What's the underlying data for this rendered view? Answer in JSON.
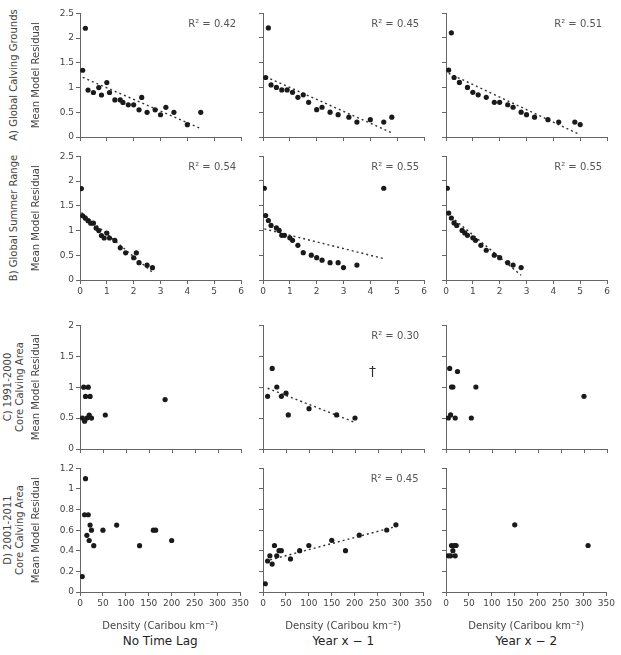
{
  "chart_data": [
    {
      "type": "scatter",
      "title": "A) Global Calving Grounds",
      "ylabel": "Mean Model Residual",
      "series": [
        {
          "type": "scatter",
          "color": "#1a1a1a",
          "marker": "circle",
          "x": [
            0.2,
            0.1,
            0.3,
            0.5,
            0.7,
            0.8,
            1.0,
            1.1,
            1.3,
            1.5,
            1.6,
            1.8,
            2.0,
            2.2,
            2.3,
            2.5,
            2.8,
            3.0,
            3.2,
            3.5,
            4.0,
            4.5
          ],
          "values": [
            2.2,
            1.35,
            0.95,
            0.9,
            1.0,
            0.85,
            1.1,
            0.9,
            0.75,
            0.75,
            0.7,
            0.65,
            0.65,
            0.55,
            0.8,
            0.5,
            0.55,
            0.45,
            0.6,
            0.5,
            0.25,
            0.5
          ]
        },
        {
          "type": "line",
          "color": "#333333",
          "line_style": "dotted",
          "x": [
            0.1,
            4.5
          ],
          "values": [
            1.2073,
            0.1715
          ]
        }
      ],
      "annotations": [
        "R² = 0.42"
      ],
      "xlim": [
        0,
        6
      ],
      "ylim": [
        0,
        2.5
      ],
      "xticks": [
        0,
        1,
        2,
        3,
        4,
        5,
        6
      ],
      "yticks": [
        0,
        0.5,
        1,
        1.5,
        2,
        2.5
      ],
      "grid": false,
      "tick_labels": "y"
    },
    {
      "type": "scatter",
      "series": [
        {
          "type": "scatter",
          "color": "#1a1a1a",
          "marker": "circle",
          "x": [
            0.2,
            0.1,
            0.3,
            0.5,
            0.7,
            0.9,
            1.1,
            1.3,
            1.5,
            1.7,
            2.0,
            2.2,
            2.5,
            2.8,
            3.2,
            3.5,
            4.0,
            4.5,
            4.8
          ],
          "values": [
            2.2,
            1.2,
            1.05,
            1.0,
            0.95,
            0.95,
            0.9,
            0.8,
            0.85,
            0.7,
            0.55,
            0.6,
            0.5,
            0.45,
            0.4,
            0.3,
            0.35,
            0.3,
            0.4
          ]
        },
        {
          "type": "line",
          "color": "#333333",
          "line_style": "dotted",
          "x": [
            0.1,
            4.8
          ],
          "values": [
            1.2145,
            0.0852
          ]
        }
      ],
      "annotations": [
        "R² = 0.45"
      ],
      "xlim": [
        0,
        6
      ],
      "ylim": [
        0,
        2.5
      ],
      "xticks": [
        0,
        1,
        2,
        3,
        4,
        5,
        6
      ],
      "yticks": [
        0,
        0.5,
        1,
        1.5,
        2,
        2.5
      ],
      "grid": false,
      "tick_labels": false
    },
    {
      "type": "scatter",
      "series": [
        {
          "type": "scatter",
          "color": "#1a1a1a",
          "marker": "circle",
          "x": [
            0.2,
            0.1,
            0.3,
            0.5,
            0.8,
            1.0,
            1.2,
            1.5,
            1.8,
            2.0,
            2.3,
            2.5,
            2.8,
            3.0,
            3.3,
            3.8,
            4.2,
            4.8,
            5.0
          ],
          "values": [
            2.1,
            1.35,
            1.2,
            1.1,
            1.0,
            0.9,
            0.85,
            0.8,
            0.7,
            0.7,
            0.65,
            0.6,
            0.5,
            0.45,
            0.4,
            0.35,
            0.3,
            0.3,
            0.25
          ]
        },
        {
          "type": "line",
          "color": "#333333",
          "line_style": "dotted",
          "x": [
            0.1,
            5.0
          ],
          "values": [
            1.2844,
            0.0465
          ]
        }
      ],
      "annotations": [
        "R² = 0.51"
      ],
      "xlim": [
        0,
        6
      ],
      "ylim": [
        0,
        2.5
      ],
      "xticks": [
        0,
        1,
        2,
        3,
        4,
        5,
        6
      ],
      "yticks": [
        0,
        0.5,
        1,
        1.5,
        2,
        2.5
      ],
      "grid": false,
      "tick_labels": false
    },
    {
      "type": "scatter",
      "title": "B) Global Summer Range",
      "ylabel": "Mean Model Residual",
      "series": [
        {
          "type": "scatter",
          "color": "#1a1a1a",
          "marker": "circle",
          "x": [
            0.05,
            0.1,
            0.2,
            0.3,
            0.4,
            0.5,
            0.6,
            0.7,
            0.8,
            0.9,
            1.0,
            1.1,
            1.3,
            1.5,
            1.7,
            2.0,
            2.1,
            2.2,
            2.5,
            2.7
          ],
          "values": [
            1.85,
            1.3,
            1.25,
            1.2,
            1.15,
            1.15,
            1.05,
            1.0,
            0.9,
            0.85,
            0.95,
            0.85,
            0.8,
            0.65,
            0.55,
            0.45,
            0.55,
            0.35,
            0.3,
            0.25
          ]
        },
        {
          "type": "line",
          "color": "#333333",
          "line_style": "dotted",
          "x": [
            0.05,
            2.7
          ],
          "values": [
            1.3633,
            0.1557
          ]
        }
      ],
      "annotations": [
        "R² = 0.54"
      ],
      "xlim": [
        0,
        6
      ],
      "ylim": [
        0,
        2.5
      ],
      "xticks": [
        0,
        1,
        2,
        3,
        4,
        5,
        6
      ],
      "yticks": [
        0,
        0.5,
        1,
        1.5,
        2,
        2.5
      ],
      "grid": false
    },
    {
      "type": "scatter",
      "series": [
        {
          "type": "scatter",
          "color": "#1a1a1a",
          "marker": "circle",
          "x": [
            0.05,
            0.1,
            0.2,
            0.3,
            0.5,
            0.6,
            0.7,
            0.8,
            1.0,
            1.1,
            1.3,
            1.5,
            1.8,
            2.0,
            2.2,
            2.5,
            2.8,
            3.0,
            3.5,
            4.5
          ],
          "values": [
            1.85,
            1.3,
            1.2,
            1.1,
            1.05,
            1.0,
            0.9,
            0.9,
            0.85,
            0.8,
            0.7,
            0.55,
            0.5,
            0.45,
            0.4,
            0.35,
            0.35,
            0.25,
            0.3,
            1.85
          ]
        },
        {
          "type": "line",
          "color": "#333333",
          "line_style": "dotted",
          "x": [
            0.05,
            4.5
          ],
          "values": [
            1.0311,
            0.431
          ]
        }
      ],
      "annotations": [
        "R² = 0.55"
      ],
      "xlim": [
        0,
        6
      ],
      "ylim": [
        0,
        2.5
      ],
      "xticks": [
        0,
        1,
        2,
        3,
        4,
        5,
        6
      ],
      "yticks": [
        0,
        0.5,
        1,
        1.5,
        2,
        2.5
      ],
      "grid": false,
      "tick_labels": "x"
    },
    {
      "type": "scatter",
      "series": [
        {
          "type": "scatter",
          "color": "#1a1a1a",
          "marker": "circle",
          "x": [
            0.05,
            0.1,
            0.2,
            0.3,
            0.4,
            0.6,
            0.7,
            0.8,
            1.0,
            1.1,
            1.3,
            1.5,
            1.8,
            2.0,
            2.3,
            2.5,
            2.8
          ],
          "values": [
            1.85,
            1.35,
            1.25,
            1.15,
            1.1,
            1.0,
            0.95,
            0.9,
            0.85,
            0.8,
            0.7,
            0.6,
            0.5,
            0.45,
            0.35,
            0.3,
            0.25
          ]
        },
        {
          "type": "line",
          "color": "#333333",
          "line_style": "dotted",
          "x": [
            0.05,
            2.8
          ],
          "values": [
            1.3397,
            0.0941
          ]
        }
      ],
      "annotations": [
        "R² = 0.55"
      ],
      "xlim": [
        0,
        6
      ],
      "ylim": [
        0,
        2.5
      ],
      "xticks": [
        0,
        1,
        2,
        3,
        4,
        5,
        6
      ],
      "yticks": [
        0,
        0.5,
        1,
        1.5,
        2,
        2.5
      ],
      "grid": false,
      "tick_labels": "x"
    },
    {
      "type": "scatter",
      "title": "C) 1991-2000\nCore Calving Area",
      "ylabel": "Mean Model Residual",
      "series": [
        {
          "type": "scatter",
          "color": "#1a1a1a",
          "marker": "circle",
          "x": [
            5,
            8,
            10,
            12,
            15,
            18,
            20,
            22,
            25,
            55,
            185
          ],
          "values": [
            0.5,
            1.0,
            0.45,
            0.85,
            0.5,
            1.0,
            0.55,
            0.85,
            0.5,
            0.55,
            0.8
          ]
        }
      ],
      "xlim": [
        0,
        350
      ],
      "ylim": [
        0,
        2
      ],
      "xticks": [
        0,
        50,
        100,
        150,
        200,
        250,
        300,
        350
      ],
      "yticks": [
        0,
        0.5,
        1,
        1.5,
        2
      ],
      "grid": false,
      "tick_labels": "y"
    },
    {
      "type": "scatter",
      "series": [
        {
          "type": "scatter",
          "color": "#1a1a1a",
          "marker": "circle",
          "x": [
            10,
            20,
            30,
            40,
            50,
            55,
            100,
            160,
            200
          ],
          "values": [
            0.85,
            1.3,
            1.0,
            0.85,
            0.9,
            0.55,
            0.65,
            0.55,
            0.5
          ]
        },
        {
          "type": "line",
          "color": "#333333",
          "line_style": "dotted",
          "x": [
            10,
            200
          ],
          "values": [
            0.9799,
            0.4284
          ]
        }
      ],
      "annotations": [
        "R² = 0.30",
        "†"
      ],
      "xlim": [
        0,
        350
      ],
      "ylim": [
        0,
        2
      ],
      "xticks": [
        0,
        50,
        100,
        150,
        200,
        250,
        300,
        350
      ],
      "yticks": [
        0,
        0.5,
        1,
        1.5,
        2
      ],
      "grid": false,
      "tick_labels": false
    },
    {
      "type": "scatter",
      "series": [
        {
          "type": "scatter",
          "color": "#1a1a1a",
          "marker": "circle",
          "x": [
            5,
            8,
            10,
            12,
            15,
            20,
            25,
            55,
            65,
            300
          ],
          "values": [
            0.5,
            1.3,
            0.55,
            1.0,
            1.0,
            0.5,
            1.25,
            0.5,
            1.0,
            0.85
          ]
        }
      ],
      "xlim": [
        0,
        350
      ],
      "ylim": [
        0,
        2
      ],
      "xticks": [
        0,
        50,
        100,
        150,
        200,
        250,
        300,
        350
      ],
      "yticks": [
        0,
        0.5,
        1,
        1.5,
        2
      ],
      "grid": false,
      "tick_labels": false
    },
    {
      "type": "scatter",
      "title": "D) 2001-2011\nCore Calving Area",
      "subtitle": "No Time Lag",
      "xlabel": "Density (Caribou km⁻²)",
      "ylabel": "Mean Model Residual",
      "series": [
        {
          "type": "scatter",
          "color": "#1a1a1a",
          "marker": "circle",
          "x": [
            5,
            10,
            12,
            15,
            18,
            20,
            22,
            25,
            30,
            50,
            80,
            130,
            160,
            165,
            200
          ],
          "values": [
            0.15,
            0.75,
            1.1,
            0.55,
            0.75,
            0.5,
            0.65,
            0.6,
            0.45,
            0.6,
            0.65,
            0.45,
            0.6,
            0.6,
            0.5
          ]
        }
      ],
      "xlim": [
        0,
        350
      ],
      "ylim": [
        0,
        1.2
      ],
      "xticks": [
        0,
        50,
        100,
        150,
        200,
        250,
        300,
        350
      ],
      "yticks": [
        0,
        0.2,
        0.4,
        0.6,
        0.8,
        1,
        1.2
      ],
      "grid": false
    },
    {
      "type": "scatter",
      "subtitle": "Year x − 1",
      "xlabel": "Density (Caribou km⁻²)",
      "series": [
        {
          "type": "scatter",
          "color": "#1a1a1a",
          "marker": "circle",
          "x": [
            5,
            10,
            15,
            20,
            25,
            30,
            35,
            40,
            60,
            80,
            100,
            150,
            180,
            210,
            270,
            290
          ],
          "values": [
            0.08,
            0.3,
            0.35,
            0.27,
            0.45,
            0.35,
            0.4,
            0.4,
            0.32,
            0.4,
            0.45,
            0.5,
            0.4,
            0.55,
            0.6,
            0.65
          ]
        },
        {
          "type": "line",
          "color": "#333333",
          "line_style": "dotted",
          "x": [
            5,
            290
          ],
          "values": [
            0.2988,
            0.6331
          ]
        }
      ],
      "annotations": [
        "R² = 0.45"
      ],
      "xlim": [
        0,
        350
      ],
      "ylim": [
        0,
        1.2
      ],
      "xticks": [
        0,
        50,
        100,
        150,
        200,
        250,
        300,
        350
      ],
      "yticks": [
        0,
        0.2,
        0.4,
        0.6,
        0.8,
        1,
        1.2
      ],
      "grid": false,
      "tick_labels": "x"
    },
    {
      "type": "scatter",
      "subtitle": "Year x − 2",
      "xlabel": "Density (Caribou km⁻²)",
      "series": [
        {
          "type": "scatter",
          "color": "#1a1a1a",
          "marker": "circle",
          "x": [
            5,
            10,
            12,
            15,
            18,
            20,
            22,
            150,
            310
          ],
          "values": [
            0.35,
            0.35,
            0.45,
            0.4,
            0.45,
            0.35,
            0.45,
            0.65,
            0.45
          ]
        }
      ],
      "xlim": [
        0,
        350
      ],
      "ylim": [
        0,
        1.2
      ],
      "xticks": [
        0,
        50,
        100,
        150,
        200,
        250,
        300,
        350
      ],
      "yticks": [
        0,
        0.2,
        0.4,
        0.6,
        0.8,
        1,
        1.2
      ],
      "grid": false,
      "tick_labels": "x"
    }
  ]
}
